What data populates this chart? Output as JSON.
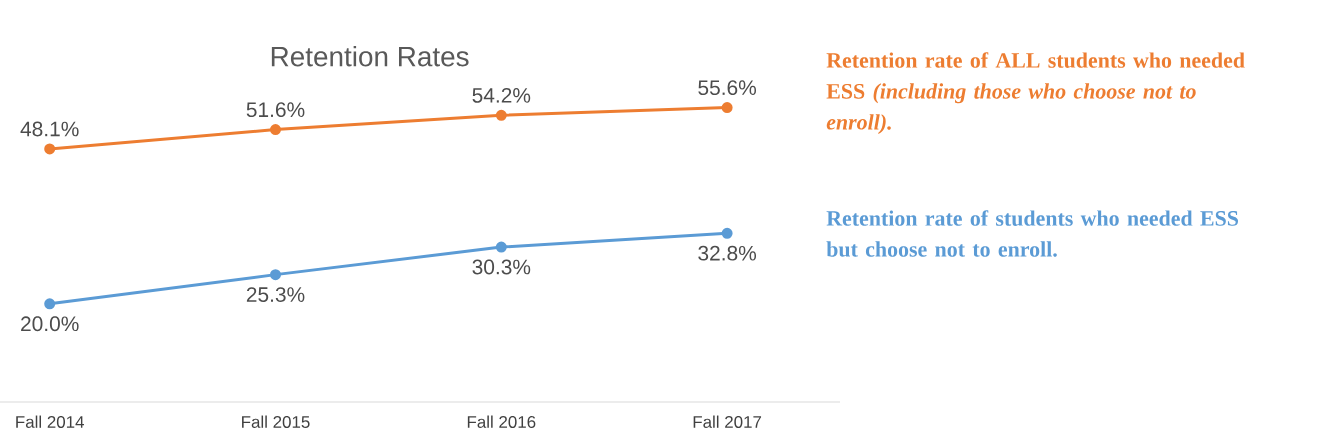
{
  "chart_data": {
    "type": "line",
    "title": "Retention Rates",
    "categories": [
      "Fall 2014",
      "Fall 2015",
      "Fall 2016",
      "Fall 2017"
    ],
    "series": [
      {
        "name": "Retention rate of ALL students who needed ESS *(including those who choose not to enroll).*",
        "color": "#ed7d31",
        "values": [
          48.1,
          51.6,
          54.2,
          55.6
        ],
        "value_labels": [
          "48.1%",
          "51.6%",
          "54.2%",
          "55.6%"
        ]
      },
      {
        "name": "Retention rate of students who needed ESS but choose not to enroll.",
        "color": "#5b9bd5",
        "values": [
          20.0,
          25.3,
          30.3,
          32.8
        ],
        "value_labels": [
          "20.0%",
          "25.3%",
          "30.3%",
          "32.8%"
        ]
      }
    ],
    "tick_labels": "x",
    "marker": "circle",
    "line_style": "solid"
  }
}
